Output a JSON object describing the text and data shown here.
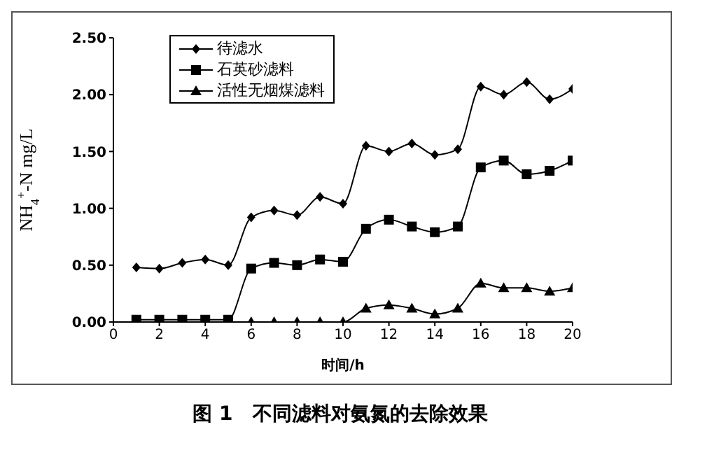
{
  "chart_data": {
    "type": "line",
    "xlabel": "时间/h",
    "ylabel": "NH$_{4}$$^{+}$-N  mg/L",
    "annotations": [
      "图 1　不同滤料对氨氮的去除效果"
    ],
    "x": [
      1,
      2,
      3,
      4,
      5,
      6,
      7,
      8,
      9,
      10,
      11,
      12,
      13,
      14,
      15,
      16,
      17,
      18,
      19,
      20
    ],
    "series": [
      {
        "name": "待滤水",
        "color": "#000000",
        "marker": "diamond",
        "values": [
          0.48,
          0.47,
          0.52,
          0.55,
          0.5,
          0.92,
          0.98,
          0.94,
          1.1,
          1.04,
          1.55,
          1.5,
          1.57,
          1.47,
          1.52,
          2.07,
          2.0,
          2.11,
          1.96,
          2.05
        ]
      },
      {
        "name": "石英砂滤料",
        "color": "#000000",
        "marker": "square",
        "values": [
          0.02,
          0.02,
          0.02,
          0.02,
          0.02,
          0.47,
          0.52,
          0.5,
          0.55,
          0.53,
          0.82,
          0.9,
          0.84,
          0.79,
          0.84,
          1.36,
          1.42,
          1.3,
          1.33,
          1.42
        ]
      },
      {
        "name": "活性无烟煤滤料",
        "color": "#000000",
        "marker": "triangle",
        "values": [
          0,
          0,
          0,
          0,
          0,
          0,
          0,
          0,
          0,
          0,
          0.12,
          0.15,
          0.12,
          0.07,
          0.12,
          0.34,
          0.3,
          0.3,
          0.27,
          0.3
        ]
      }
    ],
    "xlim": [
      0,
      20
    ],
    "xticks": [
      0,
      2,
      4,
      6,
      8,
      10,
      12,
      14,
      16,
      18,
      20
    ],
    "ylim": [
      0,
      2.5
    ],
    "yticks": [
      {
        "value": 0,
        "label": "0.00"
      },
      {
        "value": 0.5,
        "label": "0.50"
      },
      {
        "value": 1,
        "label": "1.00"
      },
      {
        "value": 1.5,
        "label": "1.50"
      },
      {
        "value": 2,
        "label": "2.00"
      },
      {
        "value": 2.5,
        "label": "2.50"
      }
    ],
    "grid": false,
    "legend": "top left",
    "line_style": "solid"
  }
}
